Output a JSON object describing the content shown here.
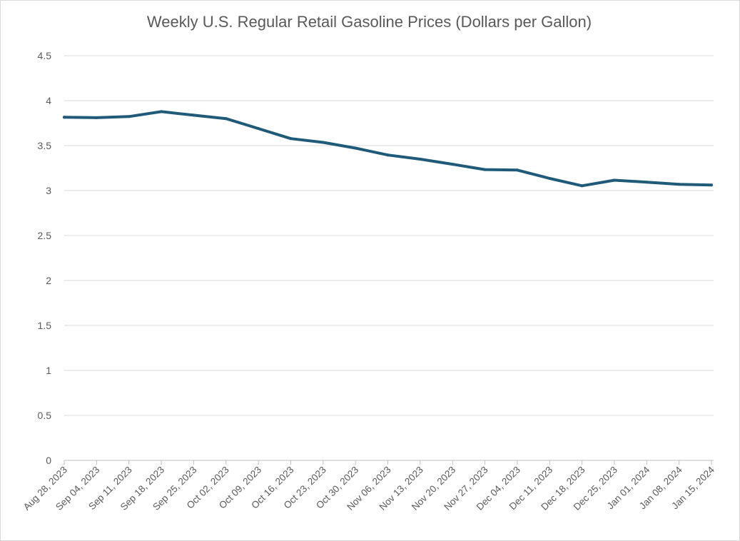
{
  "chart_data": {
    "type": "line",
    "title": "Weekly U.S. Regular Retail Gasoline Prices  (Dollars per Gallon)",
    "xlabel": "",
    "ylabel": "",
    "ylim": [
      0,
      4.5
    ],
    "yticks": [
      "0",
      "0.5",
      "1",
      "1.5",
      "2",
      "2.5",
      "3",
      "3.5",
      "4",
      "4.5"
    ],
    "grid": true,
    "x": [
      "Aug 28, 2023",
      "Sep 04, 2023",
      "Sep 11, 2023",
      "Sep 18, 2023",
      "Sep 25, 2023",
      "Oct 02, 2023",
      "Oct 09, 2023",
      "Oct 16, 2023",
      "Oct 23, 2023",
      "Oct 30, 2023",
      "Nov 06, 2023",
      "Nov 13, 2023",
      "Nov 20, 2023",
      "Nov 27, 2023",
      "Dec 04, 2023",
      "Dec 11, 2023",
      "Dec 18, 2023",
      "Dec 25, 2023",
      "Jan 01, 2024",
      "Jan 08, 2024",
      "Jan 15, 2024"
    ],
    "series": [
      {
        "values": [
          3.815,
          3.81,
          3.823,
          3.878,
          3.838,
          3.8,
          3.69,
          3.578,
          3.536,
          3.472,
          3.395,
          3.349,
          3.293,
          3.233,
          3.228,
          3.135,
          3.053,
          3.115,
          3.094,
          3.07,
          3.062
        ]
      }
    ],
    "colors": {
      "line": "#1f5b79",
      "grid": "#d9d9d9",
      "axis": "#bfbfbf",
      "text": "#595959"
    }
  }
}
